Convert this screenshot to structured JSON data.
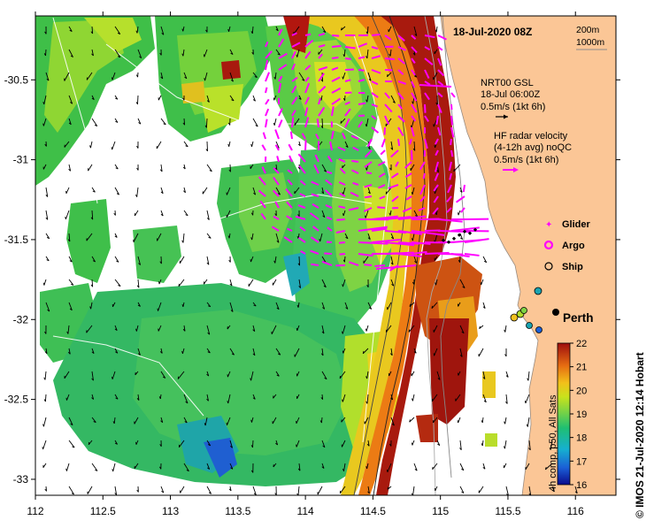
{
  "header": {
    "title": "18-Jul-2020 08Z"
  },
  "depth_legend": {
    "line1": "200m",
    "line2": "1000m"
  },
  "gsl_legend": {
    "line1": "NRT00 GSL",
    "line2": "18-Jul 06:00Z",
    "line3": "0.5m/s (1kt 6h)"
  },
  "hf_legend": {
    "line1": "HF radar velocity",
    "line2": "(4-12h avg) noQC",
    "line3": "0.5m/s (1kt 6h)"
  },
  "markers": [
    {
      "symbol": "star",
      "label": "Glider",
      "color": "#ff00ff"
    },
    {
      "symbol": "ring",
      "label": "Argo",
      "color": "#ff00ff"
    },
    {
      "symbol": "circle",
      "label": "Ship",
      "color": "#000000"
    }
  ],
  "city": {
    "label": "Perth"
  },
  "colorbar": {
    "ticks": [
      "22",
      "21",
      "20",
      "19",
      "18",
      "17",
      "16"
    ],
    "caption": "4h comp, p50, All Sats",
    "range": [
      16,
      22
    ]
  },
  "credit": "© IMOS 21-Jul-2020 12:14 Hobart",
  "axes": {
    "x_ticks": [
      "112",
      "112.5",
      "113",
      "113.5",
      "114",
      "114.5",
      "115",
      "115.5",
      "116"
    ],
    "y_ticks": [
      "-30.5",
      "-31",
      "-31.5",
      "-32",
      "-32.5",
      "-33"
    ],
    "xlim": [
      112,
      116.3
    ],
    "ylim": [
      -33.1,
      -30.1
    ]
  },
  "colors": {
    "land": "#fbc696",
    "gsl_arrow": "#000000",
    "hf_arrow": "#ff00ff"
  }
}
